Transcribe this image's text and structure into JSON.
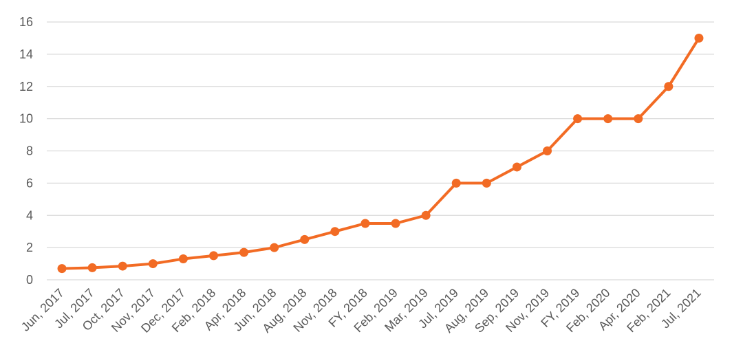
{
  "chart_data": {
    "type": "line",
    "categories": [
      "Jun, 2017",
      "Jul, 2017",
      "Oct, 2017",
      "Nov, 2017",
      "Dec, 2017",
      "Feb, 2018",
      "Apr, 2018",
      "Jun, 2018",
      "Aug, 2018",
      "Nov, 2018",
      "FY, 2018",
      "Feb, 2019",
      "Mar, 2019",
      "Jul, 2019",
      "Aug, 2019",
      "Sep, 2019",
      "Nov, 2019",
      "FY, 2019",
      "Feb, 2020",
      "Apr, 2020",
      "Feb, 2021",
      "Jul, 2021"
    ],
    "values": [
      0.7,
      0.75,
      0.85,
      1.0,
      1.3,
      1.5,
      1.7,
      2.0,
      2.5,
      3.0,
      3.5,
      3.5,
      4,
      6,
      6,
      7,
      8,
      10,
      10,
      10,
      12,
      15
    ],
    "color": "#f26b24",
    "ylim": [
      0,
      16
    ],
    "yticks": [
      0,
      2,
      4,
      6,
      8,
      10,
      12,
      14,
      16
    ],
    "grid": true
  }
}
